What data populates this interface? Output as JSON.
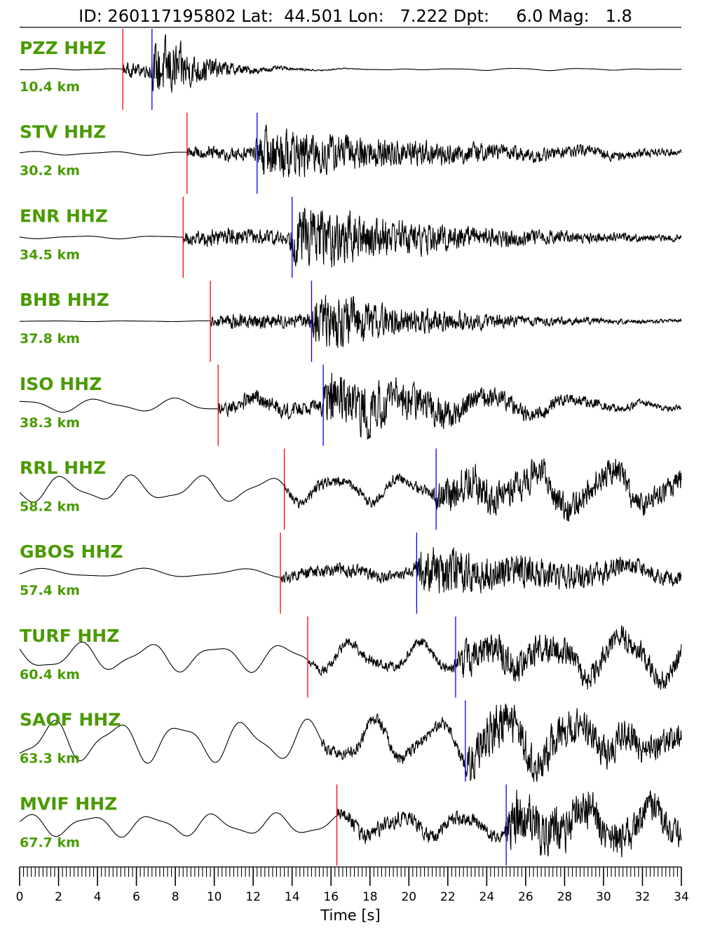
{
  "chart_data": {
    "type": "line",
    "title": "ID: 260117195802 Lat:  44.501 Lon:   7.222 Dpt:     6.0 Mag:   1.8",
    "xlabel": "Time [s]",
    "ylabel": "",
    "xlim": [
      0,
      34
    ],
    "xticks": [
      "0",
      "2",
      "4",
      "6",
      "8",
      "10",
      "12",
      "14",
      "16",
      "18",
      "20",
      "22",
      "24",
      "26",
      "28",
      "30",
      "32",
      "34"
    ],
    "minor_tick_step": 0.2,
    "grid": false,
    "colors": {
      "trace": "#000000",
      "p_pick": "#ff0000",
      "s_pick": "#0000ff",
      "label": "#4a9a00"
    },
    "series": [
      {
        "name": "PZZ HHZ",
        "distance": "10.4 km",
        "p_pick": 5.3,
        "s_pick": 6.8,
        "noise": 0.02,
        "noise_period": 3,
        "signal": 0.55,
        "coda_decay": 2.0
      },
      {
        "name": "STV HHZ",
        "distance": "30.2 km",
        "p_pick": 8.6,
        "s_pick": 12.2,
        "noise": 0.05,
        "noise_period": 4,
        "signal": 0.45,
        "coda_decay": 10.0
      },
      {
        "name": "ENR HHZ",
        "distance": "34.5 km",
        "p_pick": 8.4,
        "s_pick": 14.0,
        "noise": 0.04,
        "noise_period": 4,
        "signal": 0.55,
        "coda_decay": 8.0
      },
      {
        "name": "BHB HHZ",
        "distance": "37.8 km",
        "p_pick": 9.8,
        "s_pick": 15.0,
        "noise": 0.01,
        "noise_period": 4,
        "signal": 0.5,
        "coda_decay": 6.0
      },
      {
        "name": "ISO HHZ",
        "distance": "38.3 km",
        "p_pick": 10.2,
        "s_pick": 15.6,
        "noise": 0.18,
        "noise_period": 4,
        "signal": 0.55,
        "coda_decay": 7.0
      },
      {
        "name": "RRL HHZ",
        "distance": "58.2 km",
        "p_pick": 13.6,
        "s_pick": 21.4,
        "noise": 0.35,
        "noise_period": 3.5,
        "signal": 0.35,
        "coda_decay": 20.0
      },
      {
        "name": "GBOS HHZ",
        "distance": "57.4 km",
        "p_pick": 13.4,
        "s_pick": 20.4,
        "noise": 0.12,
        "noise_period": 5,
        "signal": 0.45,
        "coda_decay": 10.0
      },
      {
        "name": "TURF HHZ",
        "distance": "60.4 km",
        "p_pick": 14.8,
        "s_pick": 22.4,
        "noise": 0.38,
        "noise_period": 3.5,
        "signal": 0.32,
        "coda_decay": 20.0
      },
      {
        "name": "SAOF HHZ",
        "distance": "63.3 km",
        "p_pick": null,
        "s_pick": 22.9,
        "noise": 0.55,
        "noise_period": 3.3,
        "signal": 0.4,
        "coda_decay": 20.0
      },
      {
        "name": "MVIF HHZ",
        "distance": "67.7 km",
        "p_pick": 16.3,
        "s_pick": 25.0,
        "noise": 0.3,
        "noise_period": 3.2,
        "signal": 0.5,
        "coda_decay": 12.0
      }
    ]
  }
}
